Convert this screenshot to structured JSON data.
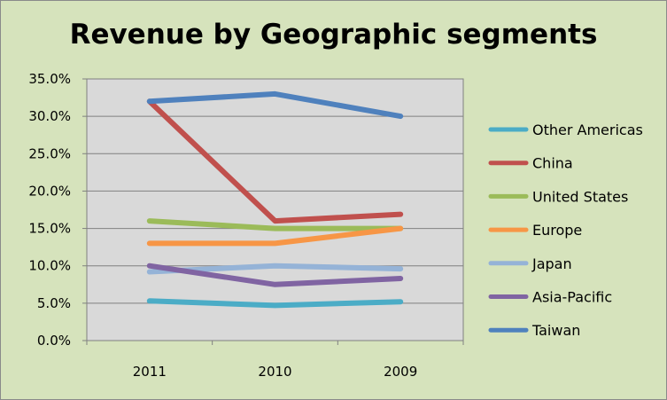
{
  "chart_data": {
    "type": "line",
    "title": "Revenue by Geographic segments",
    "categories": [
      "2011",
      "2010",
      "2009"
    ],
    "ylim": [
      0,
      35
    ],
    "yticks": [
      "0.0%",
      "5.0%",
      "10.0%",
      "15.0%",
      "20.0%",
      "25.0%",
      "30.0%",
      "35.0%"
    ],
    "grid": true,
    "legend_position": "right",
    "series": [
      {
        "name": "Other Americas",
        "color": "#4bacc6",
        "values": [
          5.3,
          4.7,
          5.2
        ]
      },
      {
        "name": "China",
        "color": "#c0504d",
        "values": [
          32.0,
          16.0,
          16.9
        ]
      },
      {
        "name": "United States",
        "color": "#9bbb59",
        "values": [
          16.0,
          15.0,
          15.0
        ]
      },
      {
        "name": "Europe",
        "color": "#f79646",
        "values": [
          13.0,
          13.0,
          15.0
        ]
      },
      {
        "name": "Japan",
        "color": "#95b3d7",
        "values": [
          9.2,
          10.0,
          9.6
        ]
      },
      {
        "name": "Asia-Pacific",
        "color": "#8064a2",
        "values": [
          10.0,
          7.5,
          8.3
        ]
      },
      {
        "name": "Taiwan",
        "color": "#4f81bd",
        "values": [
          32.0,
          33.0,
          30.0
        ]
      }
    ]
  }
}
